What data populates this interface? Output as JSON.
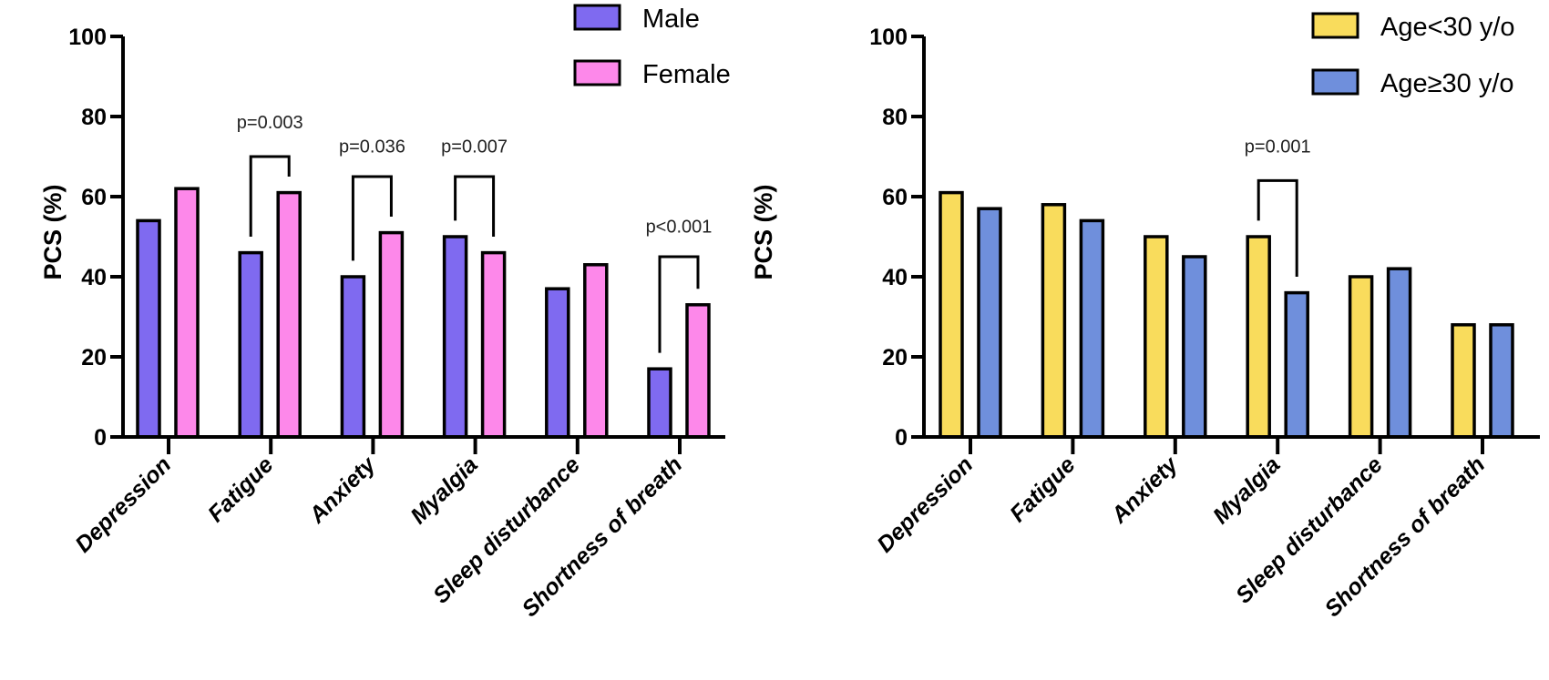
{
  "chart_data": [
    {
      "type": "bar",
      "title": "",
      "xlabel": "",
      "ylabel": "PCS (%)",
      "ylim": [
        0,
        100
      ],
      "yticks": [
        0,
        20,
        40,
        60,
        80,
        100
      ],
      "grid": false,
      "legend_position": "top-right",
      "categories": [
        "Depression",
        "Fatigue",
        "Anxiety",
        "Myalgia",
        "Sleep disturbance",
        "Shortness of breath"
      ],
      "series": [
        {
          "name": "Male",
          "color": "#7f6af0",
          "values": [
            54,
            46,
            40,
            50,
            37,
            17
          ]
        },
        {
          "name": "Female",
          "color": "#fd88ea",
          "values": [
            62,
            61,
            51,
            46,
            43,
            33
          ]
        }
      ],
      "annotations": [
        {
          "category_index": 1,
          "text": "p=0.003",
          "bracket_y": 70,
          "label_y": 77
        },
        {
          "category_index": 2,
          "text": "p=0.036",
          "bracket_y": 65,
          "label_y": 71
        },
        {
          "category_index": 3,
          "text": "p=0.007",
          "bracket_y": 65,
          "label_y": 71
        },
        {
          "category_index": 5,
          "text": "p<0.001",
          "bracket_y": 45,
          "label_y": 51
        }
      ]
    },
    {
      "type": "bar",
      "title": "",
      "xlabel": "",
      "ylabel": "PCS (%)",
      "ylim": [
        0,
        100
      ],
      "yticks": [
        0,
        20,
        40,
        60,
        80,
        100
      ],
      "grid": false,
      "legend_position": "top-right",
      "categories": [
        "Depression",
        "Fatigue",
        "Anxiety",
        "Myalgia",
        "Sleep disturbance",
        "Shortness of breath"
      ],
      "series": [
        {
          "name": "Age<30 y/o",
          "color": "#f9dc5c",
          "values": [
            61,
            58,
            50,
            50,
            40,
            28
          ]
        },
        {
          "name": "Age≥30 y/o",
          "color": "#6f8fdc",
          "values": [
            57,
            54,
            45,
            36,
            42,
            28
          ]
        }
      ],
      "annotations": [
        {
          "category_index": 3,
          "text": "p=0.001",
          "bracket_y": 64,
          "label_y": 71
        }
      ]
    }
  ]
}
